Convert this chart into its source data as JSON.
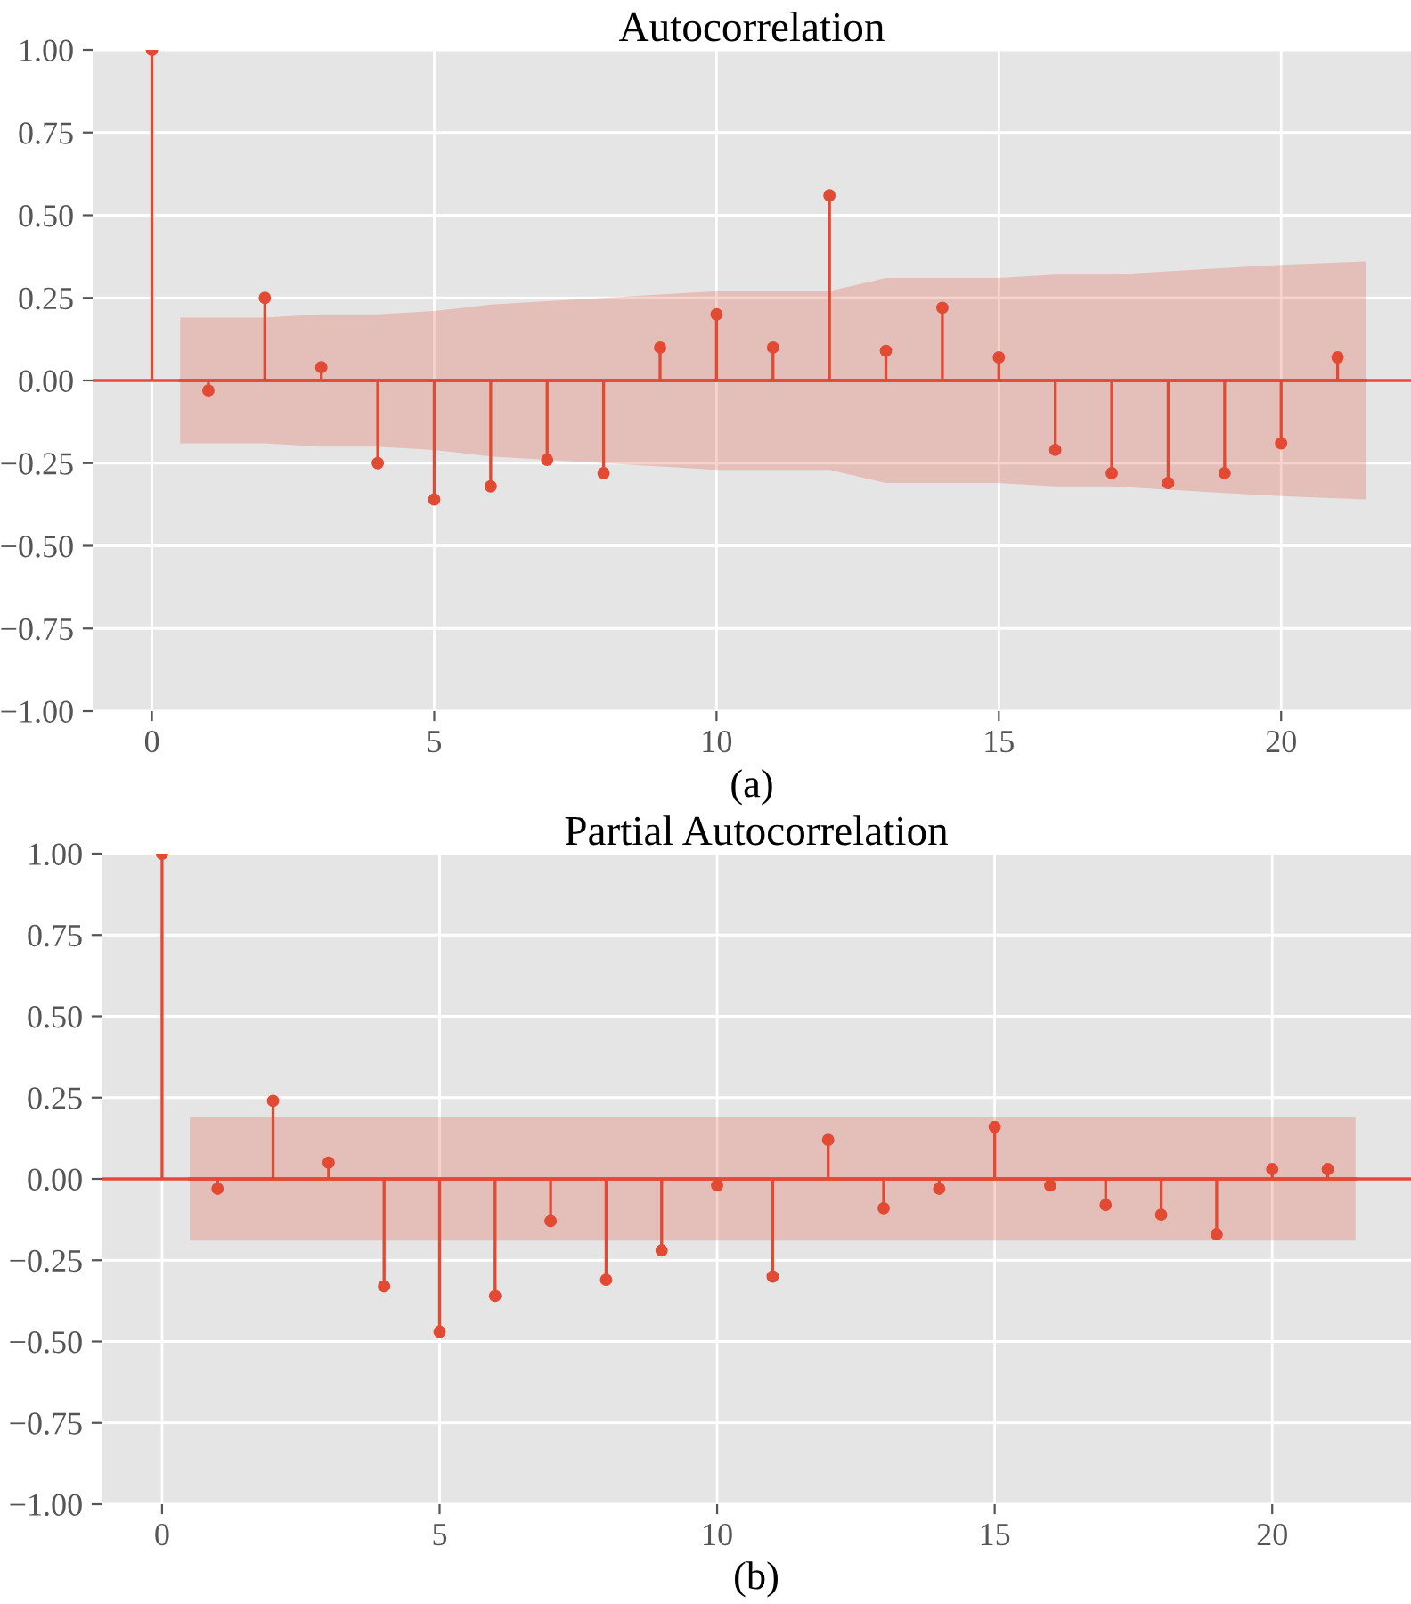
{
  "chart_data": [
    {
      "type": "lollipop",
      "title": "Autocorrelation",
      "annotations": [
        "(a)"
      ],
      "xlim": [
        -1.05,
        22.3
      ],
      "ylim": [
        -1.0,
        1.0
      ],
      "xticks": [
        0,
        5,
        10,
        15,
        20
      ],
      "yticks": [
        {
          "value": -1.0,
          "label": "−1.00"
        },
        {
          "value": -0.75,
          "label": "−0.75"
        },
        {
          "value": -0.5,
          "label": "−0.50"
        },
        {
          "value": -0.25,
          "label": "−0.25"
        },
        {
          "value": 0.0,
          "label": "0.00"
        },
        {
          "value": 0.25,
          "label": "0.25"
        },
        {
          "value": 0.5,
          "label": "0.50"
        },
        {
          "value": 0.75,
          "label": "0.75"
        },
        {
          "value": 1.0,
          "label": "1.00"
        }
      ],
      "grid": true,
      "marker": "circle",
      "ref_lines": [
        {
          "axis": "y",
          "value": 0,
          "color": "#e24a33"
        }
      ],
      "series": [
        {
          "color": "#e24a33",
          "x": [
            0,
            1,
            2,
            3,
            4,
            5,
            6,
            7,
            8,
            9,
            10,
            11,
            12,
            13,
            14,
            15,
            16,
            17,
            18,
            19,
            20,
            21
          ],
          "values": [
            1.0,
            -0.03,
            0.25,
            0.04,
            -0.25,
            -0.36,
            -0.32,
            -0.24,
            -0.28,
            0.1,
            0.2,
            0.1,
            0.56,
            0.09,
            0.22,
            0.07,
            -0.21,
            -0.28,
            -0.31,
            -0.28,
            -0.19,
            0.07
          ]
        },
        {
          "type": "line",
          "color": "#e24a33",
          "marker": "none",
          "x": [
            0.5,
            2,
            3,
            4,
            5,
            6,
            7,
            8,
            9,
            10,
            11,
            12,
            13,
            14,
            15,
            16,
            17,
            18,
            19,
            20,
            21.5
          ],
          "values": [
            0,
            0,
            0,
            0,
            0,
            0,
            0,
            0,
            0,
            0,
            0,
            0,
            0,
            0,
            0,
            0,
            0,
            0,
            0,
            0,
            0
          ],
          "upper": [
            0.19,
            0.19,
            0.2,
            0.2,
            0.21,
            0.23,
            0.24,
            0.25,
            0.26,
            0.27,
            0.27,
            0.27,
            0.31,
            0.31,
            0.31,
            0.32,
            0.32,
            0.33,
            0.34,
            0.35,
            0.36
          ],
          "lower": [
            -0.19,
            -0.19,
            -0.2,
            -0.2,
            -0.21,
            -0.23,
            -0.24,
            -0.25,
            -0.26,
            -0.27,
            -0.27,
            -0.27,
            -0.31,
            -0.31,
            -0.31,
            -0.32,
            -0.32,
            -0.33,
            -0.34,
            -0.35,
            -0.36
          ]
        }
      ]
    },
    {
      "type": "lollipop",
      "title": "Partial Autocorrelation",
      "annotations": [
        "(b)"
      ],
      "xlim": [
        -1.09,
        22.5
      ],
      "ylim": [
        -1.0,
        1.0
      ],
      "xticks": [
        0,
        5,
        10,
        15,
        20
      ],
      "yticks": [
        {
          "value": -1.0,
          "label": "−1.00"
        },
        {
          "value": -0.75,
          "label": "−0.75"
        },
        {
          "value": -0.5,
          "label": "−0.50"
        },
        {
          "value": -0.25,
          "label": "−0.25"
        },
        {
          "value": 0.0,
          "label": "0.00"
        },
        {
          "value": 0.25,
          "label": "0.25"
        },
        {
          "value": 0.5,
          "label": "0.50"
        },
        {
          "value": 0.75,
          "label": "0.75"
        },
        {
          "value": 1.0,
          "label": "1.00"
        }
      ],
      "grid": true,
      "marker": "circle",
      "ref_lines": [
        {
          "axis": "y",
          "value": 0,
          "color": "#e24a33"
        }
      ],
      "series": [
        {
          "color": "#e24a33",
          "x": [
            0,
            1,
            2,
            3,
            4,
            5,
            6,
            7,
            8,
            9,
            10,
            11,
            12,
            13,
            14,
            15,
            16,
            17,
            18,
            19,
            20,
            21
          ],
          "values": [
            1.0,
            -0.03,
            0.24,
            0.05,
            -0.33,
            -0.47,
            -0.36,
            -0.13,
            -0.31,
            -0.22,
            -0.02,
            -0.3,
            0.12,
            -0.09,
            -0.03,
            0.16,
            -0.02,
            -0.08,
            -0.11,
            -0.17,
            0.03,
            0.03
          ]
        },
        {
          "type": "line",
          "color": "#e24a33",
          "marker": "none",
          "x": [
            0.5,
            21.5
          ],
          "values": [
            0,
            0
          ],
          "upper": [
            0.19,
            0.19
          ],
          "lower": [
            -0.19,
            -0.19
          ]
        }
      ]
    }
  ]
}
